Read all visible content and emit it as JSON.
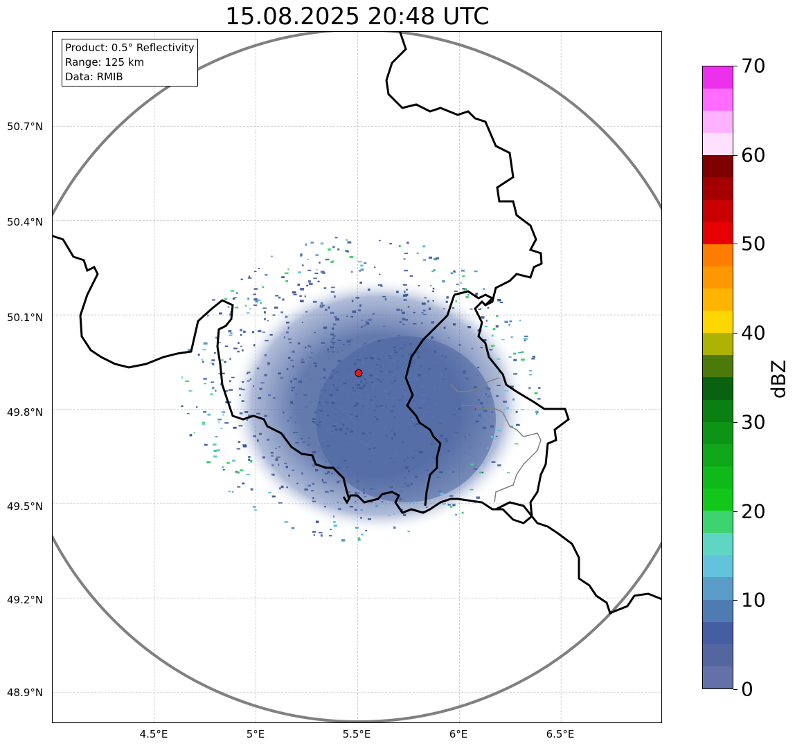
{
  "title": "15.08.2025 20:48 UTC",
  "info": {
    "product": "Product: 0.5° Reflectivity",
    "range": "Range: 125 km",
    "data": "Data: RMIB"
  },
  "y_ticks": [
    {
      "label": "50.7°N",
      "value": 50.7
    },
    {
      "label": "50.4°N",
      "value": 50.4
    },
    {
      "label": "50.1°N",
      "value": 50.1
    },
    {
      "label": "49.8°N",
      "value": 49.8
    },
    {
      "label": "49.5°N",
      "value": 49.5
    },
    {
      "label": "49.2°N",
      "value": 49.2
    },
    {
      "label": "48.9°N",
      "value": 48.9
    }
  ],
  "x_ticks": [
    {
      "label": "4.5°E",
      "value": 4.5
    },
    {
      "label": "5°E",
      "value": 5.0
    },
    {
      "label": "5.5°E",
      "value": 5.5
    },
    {
      "label": "6°E",
      "value": 6.0
    },
    {
      "label": "6.5°E",
      "value": 6.5
    }
  ],
  "map_extent": {
    "lon_min": 4.0,
    "lon_max": 7.0,
    "lat_min": 48.8,
    "lat_max": 51.0
  },
  "radar_site": {
    "lon": 5.505,
    "lat": 49.915,
    "marker_color": "#e31a1c"
  },
  "colorbar": {
    "label": "dBZ",
    "min": 0,
    "max": 70,
    "tick_labels": [
      "0",
      "10",
      "20",
      "30",
      "40",
      "50",
      "60",
      "70"
    ],
    "colors": [
      "#6471a8",
      "#5466a0",
      "#455ea3",
      "#4f7bb3",
      "#5a9cc8",
      "#64c3dc",
      "#5fd6c4",
      "#3dd36f",
      "#13c71a",
      "#10b91a",
      "#0fa717",
      "#0c9514",
      "#0a7f12",
      "#086210",
      "#4b7a0a",
      "#aeb200",
      "#ffd700",
      "#ffb400",
      "#ff9800",
      "#ff7d00",
      "#e60000",
      "#c80000",
      "#a50000",
      "#7f0000",
      "#ffe0ff",
      "#ffb2ff",
      "#ff6cff",
      "#ec30ec"
    ]
  },
  "colors": {
    "range_ring": "#808080",
    "border": "#000000",
    "echo_main": "#4a64a0"
  }
}
